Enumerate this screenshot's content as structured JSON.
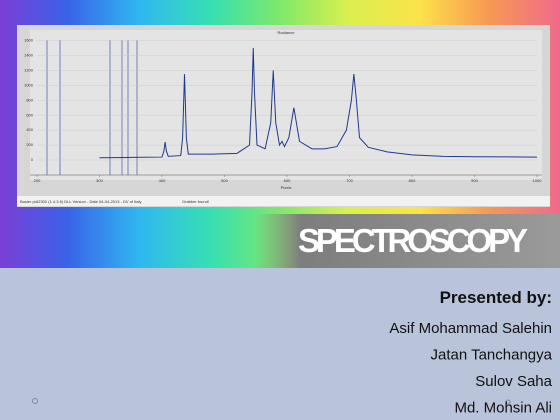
{
  "chart_data": {
    "type": "line",
    "title": "Radiance",
    "x_label": "Pixels",
    "x": [
      300,
      350,
      400,
      403,
      405,
      407,
      410,
      430,
      433,
      436,
      439,
      442,
      480,
      520,
      540,
      544,
      546,
      548,
      552,
      565,
      574,
      578,
      582,
      588,
      592,
      596,
      603,
      608,
      611,
      614,
      620,
      640,
      660,
      680,
      695,
      703,
      707,
      711,
      716,
      730,
      760,
      800,
      850,
      900,
      1000
    ],
    "values": [
      30,
      35,
      40,
      120,
      240,
      120,
      50,
      60,
      300,
      1150,
      300,
      80,
      80,
      90,
      200,
      900,
      1500,
      900,
      200,
      150,
      500,
      1200,
      500,
      200,
      250,
      180,
      300,
      550,
      700,
      550,
      250,
      150,
      150,
      180,
      400,
      800,
      1150,
      800,
      300,
      170,
      110,
      70,
      50,
      45,
      40
    ],
    "color": "#1f3a8a",
    "xlim": [
      200,
      1000
    ],
    "xticks": [
      200,
      300,
      400,
      500,
      600,
      700,
      800,
      900,
      1000
    ],
    "ylim": [
      -200,
      1700
    ],
    "yticks": [
      0,
      200,
      400,
      600,
      800,
      1000,
      1200,
      1400,
      1600
    ],
    "grid": true,
    "footer": [
      "Basler piA2300 (1.4.3.6) DLL Version - Date 04-04-2013 - DV of Italy",
      "Grabber found!"
    ]
  },
  "slide": {
    "title": "SPECTROSCOPY",
    "presenter_heading": "Presented by:",
    "presenters": [
      "Asif Mohammad Salehin",
      "Jatan Tanchangya",
      "Sulov Saha",
      "Md. Mohsin Ali"
    ]
  }
}
